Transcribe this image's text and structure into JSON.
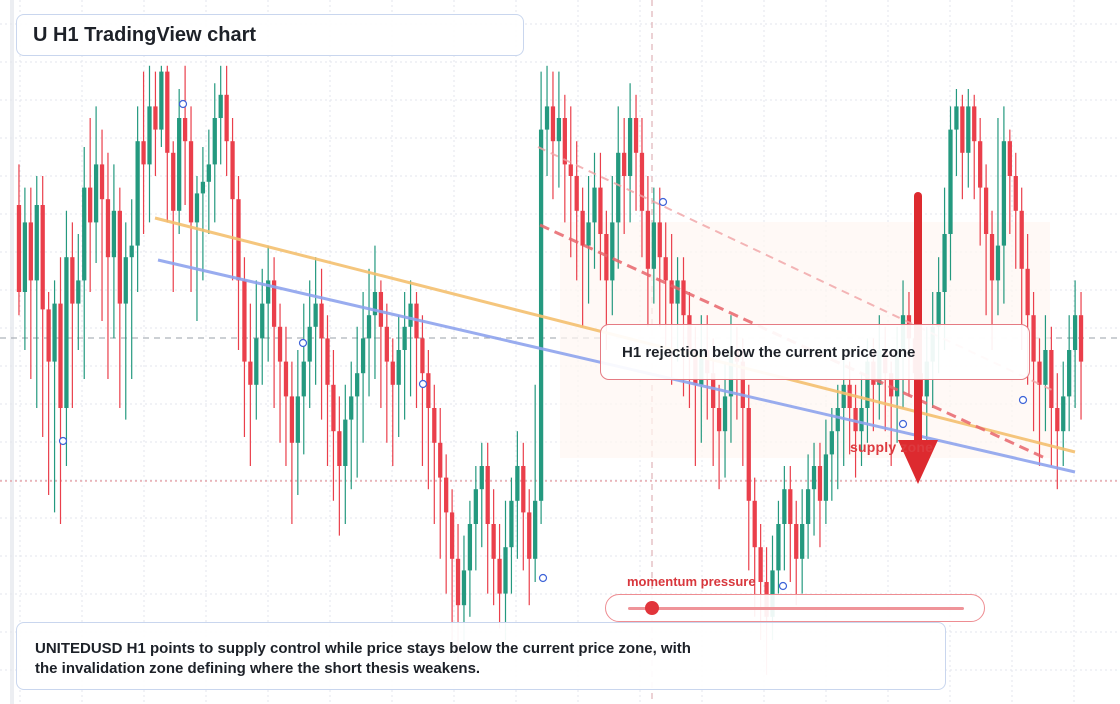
{
  "title": "U H1 TradingView chart",
  "callout": "H1 rejection below the current price zone",
  "zone_label": "supply zone",
  "momentum": {
    "label": "momentum pressure",
    "level": 0.07
  },
  "summary": {
    "line1": "UNITEDUSD H1 points to supply control while price stays below the current price zone, with",
    "line2": "the invalidation zone defining where the short thesis weakens."
  },
  "colors": {
    "bull": "#24997f",
    "bear": "#ea3f4b",
    "orange_trend": "#f4c06f",
    "blue_trend": "#8ea4ee",
    "arrow": "#dd2a2f",
    "grid": "#e3e6ec"
  },
  "icons": {
    "arrow": "down-arrow-icon"
  },
  "chart_data": {
    "type": "candlestick",
    "timeframe": "H1",
    "symbol": "UNITEDUSD",
    "ylim": [
      0,
      100
    ],
    "candles": [
      [
        75,
        60,
        82,
        56
      ],
      [
        60,
        72,
        78,
        50
      ],
      [
        72,
        62,
        78,
        45
      ],
      [
        62,
        75,
        80,
        40
      ],
      [
        75,
        57,
        80,
        35
      ],
      [
        57,
        48,
        60,
        25
      ],
      [
        48,
        58,
        62,
        22
      ],
      [
        58,
        40,
        66,
        20
      ],
      [
        40,
        66,
        74,
        30
      ],
      [
        66,
        58,
        72,
        40
      ],
      [
        58,
        62,
        70,
        50
      ],
      [
        62,
        78,
        85,
        45
      ],
      [
        78,
        72,
        90,
        60
      ],
      [
        72,
        82,
        92,
        65
      ],
      [
        82,
        76,
        88,
        55
      ],
      [
        76,
        66,
        84,
        45
      ],
      [
        66,
        74,
        82,
        52
      ],
      [
        74,
        58,
        78,
        40
      ],
      [
        58,
        66,
        72,
        38
      ],
      [
        66,
        68,
        76,
        45
      ],
      [
        68,
        86,
        92,
        60
      ],
      [
        86,
        82,
        98,
        70
      ],
      [
        82,
        92,
        99,
        72
      ],
      [
        92,
        88,
        98,
        80
      ],
      [
        88,
        98,
        99,
        85
      ],
      [
        98,
        84,
        99,
        72
      ],
      [
        84,
        74,
        86,
        60
      ],
      [
        74,
        90,
        95,
        70
      ],
      [
        90,
        86,
        99,
        75
      ],
      [
        86,
        72,
        92,
        60
      ],
      [
        72,
        77,
        80,
        55
      ],
      [
        77,
        79,
        85,
        62
      ],
      [
        79,
        82,
        88,
        70
      ],
      [
        82,
        90,
        96,
        72
      ],
      [
        90,
        94,
        99,
        82
      ],
      [
        94,
        86,
        99,
        80
      ],
      [
        86,
        76,
        90,
        62
      ],
      [
        76,
        62,
        80,
        50
      ],
      [
        62,
        48,
        66,
        35
      ],
      [
        48,
        44,
        58,
        30
      ],
      [
        44,
        52,
        62,
        38
      ],
      [
        52,
        58,
        64,
        44
      ],
      [
        58,
        62,
        68,
        48
      ],
      [
        62,
        54,
        66,
        40
      ],
      [
        54,
        48,
        58,
        34
      ],
      [
        48,
        42,
        54,
        30
      ],
      [
        42,
        34,
        48,
        20
      ],
      [
        34,
        42,
        50,
        25
      ],
      [
        42,
        48,
        58,
        32
      ],
      [
        48,
        54,
        62,
        40
      ],
      [
        54,
        58,
        66,
        44
      ],
      [
        58,
        52,
        64,
        38
      ],
      [
        52,
        44,
        56,
        30
      ],
      [
        44,
        36,
        50,
        24
      ],
      [
        36,
        30,
        42,
        18
      ],
      [
        30,
        38,
        44,
        20
      ],
      [
        38,
        42,
        48,
        26
      ],
      [
        42,
        46,
        54,
        28
      ],
      [
        46,
        52,
        60,
        34
      ],
      [
        52,
        56,
        64,
        42
      ],
      [
        56,
        60,
        68,
        45
      ],
      [
        60,
        54,
        62,
        40
      ],
      [
        54,
        48,
        58,
        34
      ],
      [
        48,
        44,
        52,
        30
      ],
      [
        44,
        50,
        56,
        35
      ],
      [
        50,
        54,
        60,
        38
      ],
      [
        54,
        58,
        62,
        42
      ],
      [
        58,
        52,
        60,
        40
      ],
      [
        52,
        46,
        56,
        30
      ],
      [
        46,
        40,
        50,
        26
      ],
      [
        40,
        34,
        44,
        20
      ],
      [
        34,
        28,
        40,
        14
      ],
      [
        28,
        22,
        32,
        8
      ],
      [
        22,
        14,
        26,
        0
      ],
      [
        14,
        6,
        20,
        -4
      ],
      [
        6,
        12,
        18,
        -2
      ],
      [
        12,
        20,
        24,
        4
      ],
      [
        20,
        26,
        30,
        12
      ],
      [
        26,
        30,
        34,
        16
      ],
      [
        30,
        20,
        34,
        8
      ],
      [
        20,
        14,
        26,
        6
      ],
      [
        14,
        8,
        20,
        2
      ],
      [
        8,
        16,
        24,
        0
      ],
      [
        16,
        24,
        28,
        8
      ],
      [
        24,
        30,
        36,
        14
      ],
      [
        30,
        22,
        34,
        12
      ],
      [
        22,
        14,
        26,
        6
      ],
      [
        14,
        24,
        44,
        10
      ],
      [
        24,
        88,
        98,
        20
      ],
      [
        88,
        92,
        99,
        80
      ],
      [
        92,
        86,
        98,
        76
      ],
      [
        86,
        90,
        98,
        78
      ],
      [
        90,
        82,
        94,
        72
      ],
      [
        82,
        80,
        92,
        66
      ],
      [
        80,
        74,
        86,
        62
      ],
      [
        74,
        68,
        78,
        54
      ],
      [
        68,
        72,
        80,
        58
      ],
      [
        72,
        78,
        84,
        64
      ],
      [
        78,
        70,
        84,
        62
      ],
      [
        70,
        62,
        74,
        50
      ],
      [
        62,
        72,
        80,
        56
      ],
      [
        72,
        84,
        92,
        64
      ],
      [
        84,
        80,
        90,
        70
      ],
      [
        80,
        90,
        96,
        72
      ],
      [
        90,
        84,
        94,
        74
      ],
      [
        84,
        74,
        90,
        66
      ],
      [
        74,
        64,
        80,
        54
      ],
      [
        64,
        72,
        78,
        58
      ],
      [
        72,
        66,
        78,
        54
      ],
      [
        66,
        62,
        72,
        50
      ],
      [
        62,
        58,
        70,
        44
      ],
      [
        58,
        62,
        66,
        48
      ],
      [
        62,
        56,
        66,
        42
      ],
      [
        56,
        50,
        60,
        40
      ],
      [
        50,
        44,
        54,
        30
      ],
      [
        44,
        50,
        56,
        34
      ],
      [
        50,
        46,
        56,
        38
      ],
      [
        46,
        40,
        52,
        30
      ],
      [
        40,
        36,
        44,
        26
      ],
      [
        36,
        42,
        48,
        28
      ],
      [
        42,
        50,
        56,
        34
      ],
      [
        50,
        48,
        54,
        38
      ],
      [
        48,
        40,
        52,
        30
      ],
      [
        40,
        24,
        44,
        12
      ],
      [
        24,
        16,
        28,
        4
      ],
      [
        16,
        10,
        20,
        0
      ],
      [
        10,
        4,
        16,
        -6
      ],
      [
        4,
        12,
        18,
        0
      ],
      [
        12,
        20,
        24,
        8
      ],
      [
        20,
        26,
        30,
        12
      ],
      [
        26,
        20,
        30,
        10
      ],
      [
        20,
        14,
        24,
        6
      ],
      [
        14,
        20,
        26,
        8
      ],
      [
        20,
        26,
        32,
        14
      ],
      [
        26,
        30,
        34,
        18
      ],
      [
        30,
        24,
        34,
        16
      ],
      [
        24,
        32,
        38,
        20
      ],
      [
        32,
        36,
        40,
        24
      ],
      [
        36,
        40,
        44,
        26
      ],
      [
        40,
        44,
        50,
        30
      ],
      [
        44,
        40,
        48,
        32
      ],
      [
        40,
        36,
        44,
        28
      ],
      [
        36,
        40,
        46,
        30
      ],
      [
        40,
        48,
        52,
        34
      ],
      [
        48,
        44,
        52,
        36
      ],
      [
        44,
        50,
        56,
        38
      ],
      [
        50,
        46,
        54,
        36
      ],
      [
        46,
        42,
        48,
        30
      ],
      [
        42,
        50,
        54,
        34
      ],
      [
        50,
        56,
        62,
        40
      ],
      [
        56,
        52,
        60,
        42
      ],
      [
        52,
        46,
        56,
        36
      ],
      [
        46,
        42,
        50,
        32
      ],
      [
        42,
        48,
        54,
        34
      ],
      [
        48,
        54,
        60,
        40
      ],
      [
        54,
        60,
        66,
        46
      ],
      [
        60,
        70,
        78,
        50
      ],
      [
        70,
        88,
        92,
        62
      ],
      [
        88,
        92,
        95,
        80
      ],
      [
        92,
        84,
        94,
        76
      ],
      [
        84,
        92,
        95,
        78
      ],
      [
        92,
        86,
        94,
        76
      ],
      [
        86,
        78,
        90,
        68
      ],
      [
        78,
        70,
        82,
        56
      ],
      [
        70,
        62,
        74,
        50
      ],
      [
        62,
        68,
        90,
        56
      ],
      [
        68,
        86,
        92,
        58
      ],
      [
        86,
        80,
        88,
        70
      ],
      [
        80,
        74,
        84,
        64
      ],
      [
        74,
        64,
        78,
        50
      ],
      [
        64,
        56,
        70,
        44
      ],
      [
        56,
        48,
        60,
        36
      ],
      [
        48,
        44,
        52,
        30
      ],
      [
        44,
        50,
        56,
        36
      ],
      [
        50,
        40,
        54,
        30
      ],
      [
        40,
        36,
        46,
        26
      ],
      [
        36,
        42,
        48,
        30
      ],
      [
        42,
        50,
        56,
        36
      ],
      [
        50,
        56,
        62,
        40
      ],
      [
        56,
        48,
        60,
        38
      ]
    ],
    "trendlines": [
      "orange",
      "blue",
      "red-dashed",
      "pink-dashed"
    ],
    "annotations": [
      "H1 rejection below the current price zone",
      "supply zone",
      "momentum pressure"
    ]
  }
}
